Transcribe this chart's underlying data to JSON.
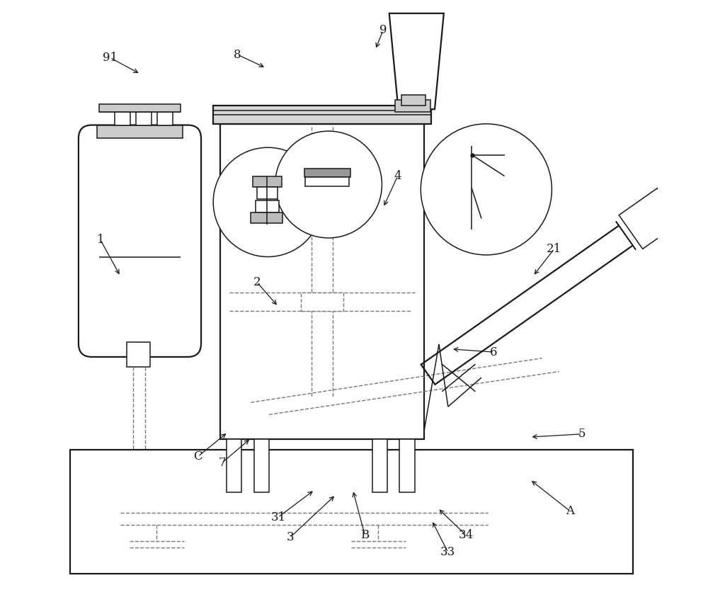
{
  "bg_color": "#ffffff",
  "lc": "#1a1a1a",
  "dc": "#777777",
  "lw_main": 1.6,
  "lw_thin": 1.1,
  "lw_dash": 1.0,
  "font_size": 12,
  "labels": {
    "1": [
      0.082,
      0.605,
      0.115,
      0.545
    ],
    "2": [
      0.34,
      0.535,
      0.375,
      0.495
    ],
    "3": [
      0.395,
      0.115,
      0.47,
      0.185
    ],
    "31": [
      0.375,
      0.148,
      0.435,
      0.193
    ],
    "4": [
      0.572,
      0.71,
      0.548,
      0.658
    ],
    "5": [
      0.876,
      0.285,
      0.79,
      0.28
    ],
    "6": [
      0.73,
      0.42,
      0.66,
      0.425
    ],
    "7": [
      0.283,
      0.238,
      0.33,
      0.278
    ],
    "8": [
      0.308,
      0.91,
      0.355,
      0.888
    ],
    "9": [
      0.548,
      0.95,
      0.535,
      0.918
    ],
    "21": [
      0.83,
      0.59,
      0.795,
      0.545
    ],
    "33": [
      0.655,
      0.09,
      0.628,
      0.143
    ],
    "34": [
      0.685,
      0.118,
      0.638,
      0.163
    ],
    "91": [
      0.098,
      0.905,
      0.148,
      0.878
    ],
    "A": [
      0.856,
      0.158,
      0.79,
      0.21
    ],
    "B": [
      0.518,
      0.118,
      0.498,
      0.193
    ],
    "C": [
      0.243,
      0.248,
      0.292,
      0.288
    ]
  }
}
